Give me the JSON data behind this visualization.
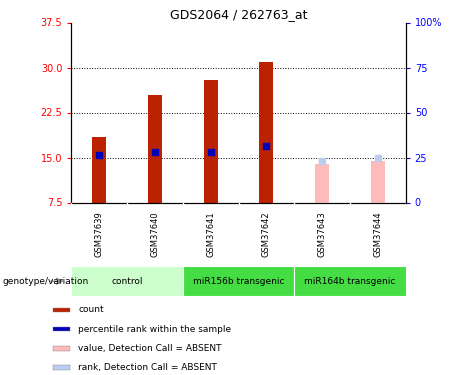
{
  "title": "GDS2064 / 262763_at",
  "samples": [
    "GSM37639",
    "GSM37640",
    "GSM37641",
    "GSM37642",
    "GSM37643",
    "GSM37644"
  ],
  "count_values": [
    18.5,
    25.5,
    28.0,
    31.0,
    null,
    null
  ],
  "percentile_values": [
    15.5,
    16.0,
    16.0,
    17.0,
    null,
    null
  ],
  "absent_value_values": [
    null,
    null,
    null,
    null,
    14.0,
    14.5
  ],
  "absent_rank_values": [
    null,
    null,
    null,
    null,
    14.5,
    15.0
  ],
  "ylim_left": [
    7.5,
    37.5
  ],
  "ylim_right": [
    0,
    100
  ],
  "yticks_left": [
    7.5,
    15,
    22.5,
    30,
    37.5
  ],
  "yticks_right": [
    0,
    25,
    50,
    75,
    100
  ],
  "ytick_right_labels": [
    "0",
    "25",
    "50",
    "75",
    "100%"
  ],
  "bar_width": 0.25,
  "count_color": "#BB2200",
  "percentile_color": "#0000BB",
  "absent_value_color": "#FFBBBB",
  "absent_rank_color": "#BBCCEE",
  "background_color": "#FFFFFF",
  "grid_dotted_vals": [
    15,
    22.5,
    30
  ],
  "group_positions": [
    {
      "label": "control",
      "xstart": 0,
      "xend": 1,
      "color": "#CCFFCC"
    },
    {
      "label": "miR156b transgenic",
      "xstart": 2,
      "xend": 3,
      "color": "#44DD44"
    },
    {
      "label": "miR164b transgenic",
      "xstart": 4,
      "xend": 5,
      "color": "#44DD44"
    }
  ],
  "legend_items": [
    {
      "label": "count",
      "color": "#BB2200"
    },
    {
      "label": "percentile rank within the sample",
      "color": "#0000BB"
    },
    {
      "label": "value, Detection Call = ABSENT",
      "color": "#FFBBBB"
    },
    {
      "label": "rank, Detection Call = ABSENT",
      "color": "#BBCCEE"
    }
  ],
  "sample_box_color": "#CCCCCC",
  "arrow_color": "#999999"
}
